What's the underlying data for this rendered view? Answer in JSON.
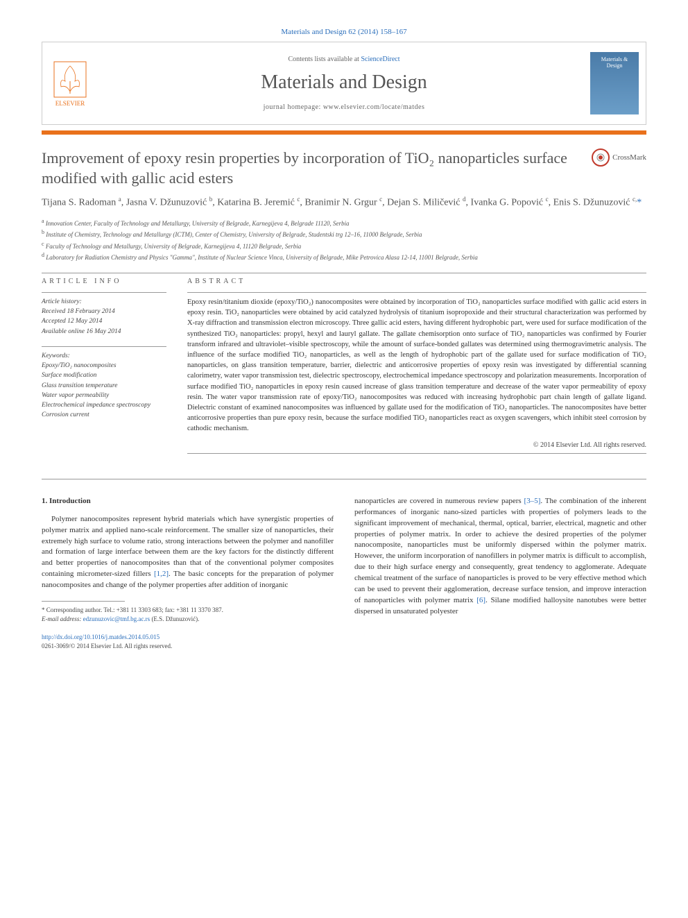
{
  "citation": {
    "journal": "Materials and Design",
    "volume_pages": "62 (2014) 158–167",
    "journal_link_text": "Materials and Design 62 (2014) 158–167"
  },
  "header": {
    "contents_prefix": "Contents lists available at ",
    "contents_link": "ScienceDirect",
    "journal_name": "Materials and Design",
    "homepage_prefix": "journal homepage: ",
    "homepage_url": "www.elsevier.com/locate/matdes",
    "elsevier": "ELSEVIER",
    "cover_text": "Materials & Design"
  },
  "crossmark": {
    "label": "CrossMark"
  },
  "article": {
    "title": "Improvement of epoxy resin properties by incorporation of TiO₂ nanoparticles surface modified with gallic acid esters",
    "authors_html": "Tijana S. Radoman <sup>a</sup>, Jasna V. Džunuzović <sup>b</sup>, Katarina B. Jeremić <sup>c</sup>, Branimir N. Grgur <sup>c</sup>, Dejan S. Miličević <sup>d</sup>, Ivanka G. Popović <sup>c</sup>, Enis S. Džunuzović <sup>c,</sup><span class=\"cor-star\">*</span>",
    "affiliations": [
      {
        "sup": "a",
        "text": "Innovation Center, Faculty of Technology and Metallurgy, University of Belgrade, Karnegijeva 4, Belgrade 11120, Serbia"
      },
      {
        "sup": "b",
        "text": "Institute of Chemistry, Technology and Metallurgy (ICTM), Center of Chemistry, University of Belgrade, Studentski trg 12–16, 11000 Belgrade, Serbia"
      },
      {
        "sup": "c",
        "text": "Faculty of Technology and Metallurgy, University of Belgrade, Karnegijeva 4, 11120 Belgrade, Serbia"
      },
      {
        "sup": "d",
        "text": "Laboratory for Radiation Chemistry and Physics \"Gamma\", Institute of Nuclear Science Vinca, University of Belgrade, Mike Petrovica Alasa 12-14, 11001 Belgrade, Serbia"
      }
    ]
  },
  "article_info": {
    "label": "ARTICLE INFO",
    "history_heading": "Article history:",
    "history": [
      "Received 18 February 2014",
      "Accepted 12 May 2014",
      "Available online 16 May 2014"
    ],
    "keywords_heading": "Keywords:",
    "keywords": [
      "Epoxy/TiO₂ nanocomposites",
      "Surface modification",
      "Glass transition temperature",
      "Water vapor permeability",
      "Electrochemical impedance spectroscopy",
      "Corrosion current"
    ]
  },
  "abstract": {
    "label": "ABSTRACT",
    "text": "Epoxy resin/titanium dioxide (epoxy/TiO₂) nanocomposites were obtained by incorporation of TiO₂ nanoparticles surface modified with gallic acid esters in epoxy resin. TiO₂ nanoparticles were obtained by acid catalyzed hydrolysis of titanium isopropoxide and their structural characterization was performed by X-ray diffraction and transmission electron microscopy. Three gallic acid esters, having different hydrophobic part, were used for surface modification of the synthesized TiO₂ nanoparticles: propyl, hexyl and lauryl gallate. The gallate chemisorption onto surface of TiO₂ nanoparticles was confirmed by Fourier transform infrared and ultraviolet–visible spectroscopy, while the amount of surface-bonded gallates was determined using thermogravimetric analysis. The influence of the surface modified TiO₂ nanoparticles, as well as the length of hydrophobic part of the gallate used for surface modification of TiO₂ nanoparticles, on glass transition temperature, barrier, dielectric and anticorrosive properties of epoxy resin was investigated by differential scanning calorimetry, water vapor transmission test, dielectric spectroscopy, electrochemical impedance spectroscopy and polarization measurements. Incorporation of surface modified TiO₂ nanoparticles in epoxy resin caused increase of glass transition temperature and decrease of the water vapor permeability of epoxy resin. The water vapor transmission rate of epoxy/TiO₂ nanocomposites was reduced with increasing hydrophobic part chain length of gallate ligand. Dielectric constant of examined nanocomposites was influenced by gallate used for the modification of TiO₂ nanoparticles. The nanocomposites have better anticorrosive properties than pure epoxy resin, because the surface modified TiO₂ nanoparticles react as oxygen scavengers, which inhibit steel corrosion by cathodic mechanism.",
    "copyright": "© 2014 Elsevier Ltd. All rights reserved."
  },
  "body": {
    "section_heading": "1. Introduction",
    "left_para": "Polymer nanocomposites represent hybrid materials which have synergistic properties of polymer matrix and applied nano-scale reinforcement. The smaller size of nanoparticles, their extremely high surface to volume ratio, strong interactions between the polymer and nanofiller and formation of large interface between them are the key factors for the distinctly different and better properties of nanocomposites than that of the conventional polymer composites containing micrometer-sized fillers ",
    "left_ref": "[1,2]",
    "left_para2": ". The basic concepts for the preparation of polymer nanocomposites and change of the polymer properties after addition of inorganic",
    "right_para": "nanoparticles are covered in numerous review papers ",
    "right_ref": "[3–5]",
    "right_para2": ". The combination of the inherent performances of inorganic nano-sized particles with properties of polymers leads to the significant improvement of mechanical, thermal, optical, barrier, electrical, magnetic and other properties of polymer matrix. In order to achieve the desired properties of the polymer nanocomposite, nanoparticles must be uniformly dispersed within the polymer matrix. However, the uniform incorporation of nanofillers in polymer matrix is difficult to accomplish, due to their high surface energy and consequently, great tendency to agglomerate. Adequate chemical treatment of the surface of nanoparticles is proved to be very effective method which can be used to prevent their agglomeration, decrease surface tension, and improve interaction of nanoparticles with polymer matrix ",
    "right_ref2": "[6]",
    "right_para3": ". Silane modified halloysite nanotubes were better dispersed in unsaturated polyester"
  },
  "footnote": {
    "corresponding": "* Corresponding author. Tel.: +381 11 3303 683; fax: +381 11 3370 387.",
    "email_label": "E-mail address: ",
    "email": "edzunuzovic@tmf.bg.ac.rs",
    "email_name": " (E.S. Džunuzović)."
  },
  "footer": {
    "doi": "http://dx.doi.org/10.1016/j.matdes.2014.05.015",
    "issn_copyright": "0261-3069/© 2014 Elsevier Ltd. All rights reserved."
  },
  "colors": {
    "link": "#2a6ebb",
    "orange": "#e9711c",
    "text": "#333333",
    "muted": "#666666"
  }
}
